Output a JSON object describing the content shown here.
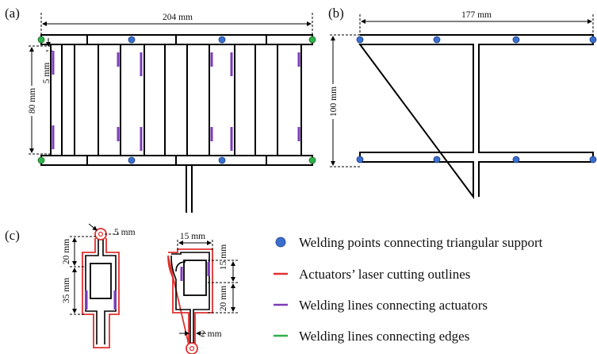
{
  "panels": {
    "a": {
      "label": "(a)",
      "dims": {
        "width": "204 mm",
        "height": "80 mm",
        "gap": "5 mm"
      }
    },
    "b": {
      "label": "(b)",
      "dims": {
        "width": "177 mm",
        "height": "100 mm"
      }
    },
    "c": {
      "label": "(c)",
      "dims": {
        "eye": "5 mm",
        "top_stem": "20 mm",
        "body": "35 mm",
        "width": "15 mm",
        "right_top": "15 mm",
        "right_body": "20 mm",
        "slot": "2 mm"
      }
    }
  },
  "legend": [
    {
      "marker": "circle",
      "color": "#3a6fd0",
      "text": "Welding points connecting triangular support"
    },
    {
      "marker": "line",
      "color": "#e03030",
      "text": "Actuators’ laser cutting outlines"
    },
    {
      "marker": "line",
      "color": "#7b3bb8",
      "text": "Welding lines connecting actuators"
    },
    {
      "marker": "line",
      "color": "#2fb04a",
      "text": "Welding lines connecting edges"
    }
  ],
  "colors": {
    "weld_point": "#3a6fd0",
    "laser": "#e03030",
    "actuator_weld": "#7b3bb8",
    "edge_weld": "#2fb04a"
  }
}
